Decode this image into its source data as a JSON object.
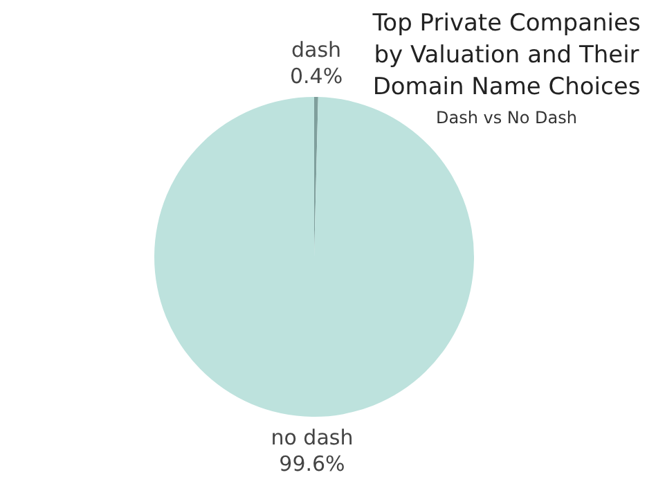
{
  "chart_data": {
    "type": "pie",
    "title": "Top Private Companies by Valuation and Their Domain Name Choices",
    "subtitle": "Dash vs No Dash",
    "categories": [
      "dash",
      "no dash"
    ],
    "values": [
      0.4,
      99.6
    ],
    "colors": [
      "#7f9f9c",
      "#bde2dd"
    ],
    "value_labels": [
      "0.4%",
      "99.6%"
    ],
    "legend": false
  }
}
